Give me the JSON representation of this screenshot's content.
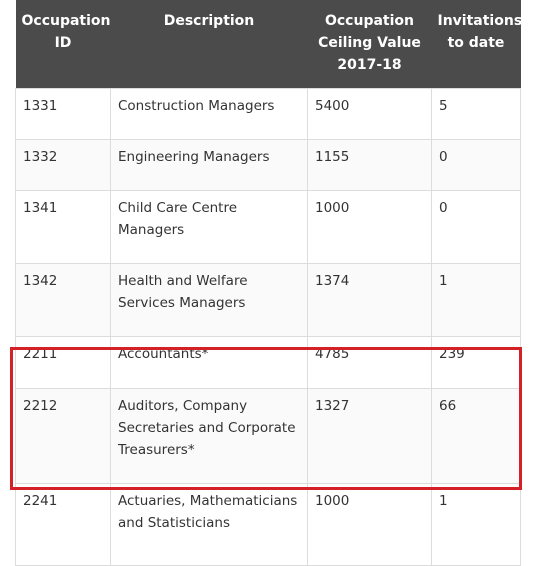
{
  "headers": {
    "occupation_id": "Occupation ID",
    "description": "Description",
    "ceiling_value": "Occupation Ceiling Value 2017-18",
    "invitations": "Invitations to date"
  },
  "rows": [
    {
      "id": "1331",
      "description": "Construction Managers",
      "ceiling": "5400",
      "invitations": "5"
    },
    {
      "id": "1332",
      "description": "Engineering Managers",
      "ceiling": "1155",
      "invitations": "0"
    },
    {
      "id": "1341",
      "description": "Child Care Centre Managers",
      "ceiling": "1000",
      "invitations": "0"
    },
    {
      "id": "1342",
      "description": "Health and Welfare Services Managers",
      "ceiling": "1374",
      "invitations": "1"
    },
    {
      "id": "2211",
      "description": "Accountants*",
      "ceiling": "4785",
      "invitations": "239"
    },
    {
      "id": "2212",
      "description": "Auditors, Company Secretaries and Corporate Treasurers*",
      "ceiling": "1327",
      "invitations": "66"
    },
    {
      "id": "2241",
      "description": "Actuaries, Mathematicians and Statisticians",
      "ceiling": "1000",
      "invitations": "1"
    }
  ],
  "highlight_color": "#d42128",
  "header_color": "#4b4b4b"
}
